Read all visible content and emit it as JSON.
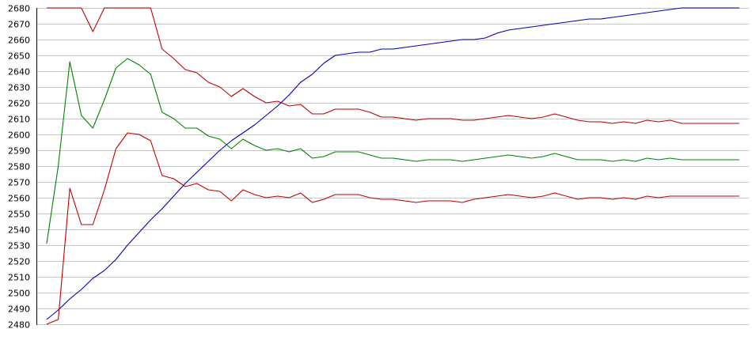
{
  "chart_data": {
    "type": "line",
    "ylim": [
      2480,
      2680
    ],
    "yticks": [
      2480,
      2490,
      2500,
      2510,
      2520,
      2530,
      2540,
      2550,
      2560,
      2570,
      2580,
      2590,
      2600,
      2610,
      2620,
      2630,
      2640,
      2650,
      2660,
      2670,
      2680
    ],
    "grid": true,
    "x": [
      1,
      2,
      3,
      4,
      5,
      6,
      7,
      8,
      9,
      10,
      11,
      12,
      13,
      14,
      15,
      16,
      17,
      18,
      19,
      20,
      21,
      22,
      23,
      24,
      25,
      26,
      27,
      28,
      29,
      30,
      31,
      32,
      33,
      34,
      35,
      36,
      37,
      38,
      39,
      40,
      41,
      42,
      43,
      44,
      45,
      46,
      47,
      48,
      49,
      50,
      51,
      52,
      53,
      54,
      55,
      56,
      57,
      58,
      59,
      60,
      61
    ],
    "series": [
      {
        "color": "#0000c0",
        "values": [
          2483,
          2489,
          2496,
          2502,
          2509,
          2514,
          2521,
          2530,
          2538,
          2546,
          2553,
          2561,
          2569,
          2576,
          2583,
          2590,
          2596,
          2601,
          2606,
          2612,
          2618,
          2625,
          2633,
          2638,
          2645,
          2650,
          2651,
          2652,
          2652,
          2654,
          2654,
          2655,
          2656,
          2657,
          2658,
          2659,
          2660,
          2660,
          2661,
          2664,
          2666,
          2667,
          2668,
          2669,
          2670,
          2671,
          2672,
          2673,
          2673,
          2674,
          2675,
          2676,
          2677,
          2678,
          2679,
          2680,
          2680,
          2680,
          2680,
          2680,
          2680
        ]
      },
      {
        "color": "#c00000",
        "values": [
          2680,
          2680,
          2680,
          2680,
          2665,
          2680,
          2680,
          2680,
          2680,
          2680,
          2654,
          2648,
          2641,
          2639,
          2633,
          2630,
          2624,
          2629,
          2624,
          2620,
          2621,
          2618,
          2619,
          2613,
          2613,
          2616,
          2616,
          2616,
          2614,
          2611,
          2611,
          2610,
          2609,
          2610,
          2610,
          2610,
          2609,
          2609,
          2610,
          2611,
          2612,
          2611,
          2610,
          2611,
          2613,
          2611,
          2609,
          2608,
          2608,
          2607,
          2608,
          2607,
          2609,
          2608,
          2609,
          2607,
          2607,
          2607,
          2607,
          2607,
          2607
        ]
      },
      {
        "color": "#008000",
        "values": [
          2531,
          2580,
          2646,
          2612,
          2604,
          2622,
          2642,
          2648,
          2644,
          2638,
          2614,
          2610,
          2604,
          2604,
          2599,
          2597,
          2591,
          2597,
          2593,
          2590,
          2591,
          2589,
          2591,
          2585,
          2586,
          2589,
          2589,
          2589,
          2587,
          2585,
          2585,
          2584,
          2583,
          2584,
          2584,
          2584,
          2583,
          2584,
          2585,
          2586,
          2587,
          2586,
          2585,
          2586,
          2588,
          2586,
          2584,
          2584,
          2584,
          2583,
          2584,
          2583,
          2585,
          2584,
          2585,
          2584,
          2584,
          2584,
          2584,
          2584,
          2584
        ]
      },
      {
        "color": "#c00000",
        "values": [
          2480,
          2483,
          2566,
          2543,
          2543,
          2565,
          2591,
          2601,
          2600,
          2596,
          2574,
          2572,
          2567,
          2569,
          2565,
          2564,
          2558,
          2565,
          2562,
          2560,
          2561,
          2560,
          2563,
          2557,
          2559,
          2562,
          2562,
          2562,
          2560,
          2559,
          2559,
          2558,
          2557,
          2558,
          2558,
          2558,
          2557,
          2559,
          2560,
          2561,
          2562,
          2561,
          2560,
          2561,
          2563,
          2561,
          2559,
          2560,
          2560,
          2559,
          2560,
          2559,
          2561,
          2560,
          2561,
          2561,
          2561,
          2561,
          2561,
          2561,
          2561
        ]
      }
    ]
  }
}
